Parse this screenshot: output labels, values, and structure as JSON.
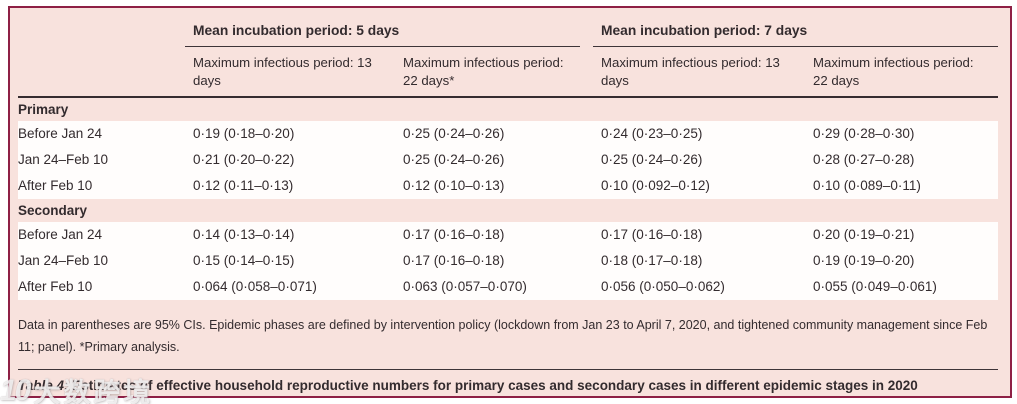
{
  "colors": {
    "panel_background": "#f8e2dd",
    "panel_border": "#8e2045",
    "row_background": "#fffdfc",
    "rule_dark": "#362c30",
    "text": "#332b2e"
  },
  "header": {
    "groups": [
      {
        "label": "Mean incubation period: 5 days",
        "columns": [
          "Maximum infectious period: 13 days",
          "Maximum infectious period: 22 days*"
        ]
      },
      {
        "label": "Mean incubation period: 7 days",
        "columns": [
          "Maximum infectious period: 13 days",
          "Maximum infectious period: 22 days"
        ]
      }
    ]
  },
  "table": {
    "sections": [
      {
        "label": "Primary",
        "rows": [
          {
            "label": "Before Jan 24",
            "values": [
              "0·19 (0·18–0·20)",
              "0·25 (0·24–0·26)",
              "0·24 (0·23–0·25)",
              "0·29 (0·28–0·30)"
            ]
          },
          {
            "label": "Jan 24–Feb 10",
            "values": [
              "0·21 (0·20–0·22)",
              "0·25 (0·24–0·26)",
              "0·25 (0·24–0·26)",
              "0·28 (0·27–0·28)"
            ]
          },
          {
            "label": "After Feb 10",
            "values": [
              "0·12 (0·11–0·13)",
              "0·12 (0·10–0·13)",
              "0·10 (0·092–0·12)",
              "0·10 (0·089–0·11)"
            ]
          }
        ]
      },
      {
        "label": "Secondary",
        "rows": [
          {
            "label": "Before Jan 24",
            "values": [
              "0·14 (0·13–0·14)",
              "0·17 (0·16–0·18)",
              "0·17 (0·16–0·18)",
              "0·20 (0·19–0·21)"
            ]
          },
          {
            "label": "Jan 24–Feb 10",
            "values": [
              "0·15 (0·14–0·15)",
              "0·17 (0·16–0·18)",
              "0·18 (0·17–0·18)",
              "0·19 (0·19–0·20)"
            ]
          },
          {
            "label": "After Feb 10",
            "values": [
              "0·064 (0·058–0·071)",
              "0·063 (0·057–0·070)",
              "0·056 (0·050–0·062)",
              "0·055 (0·049–0·061)"
            ]
          }
        ]
      }
    ]
  },
  "footnote": "Data in parentheses are 95% CIs. Epidemic phases are defined by intervention policy (lockdown from Jan 23 to April 7, 2020, and tightened community management since Feb 11; panel). *Primary analysis.",
  "caption": {
    "label": "Table 4:",
    "text": " Estimates of effective household reproductive numbers for primary cases and secondary cases in different epidemic stages in 2020"
  },
  "watermark": {
    "logo": "10",
    "text": "大数跨境"
  }
}
